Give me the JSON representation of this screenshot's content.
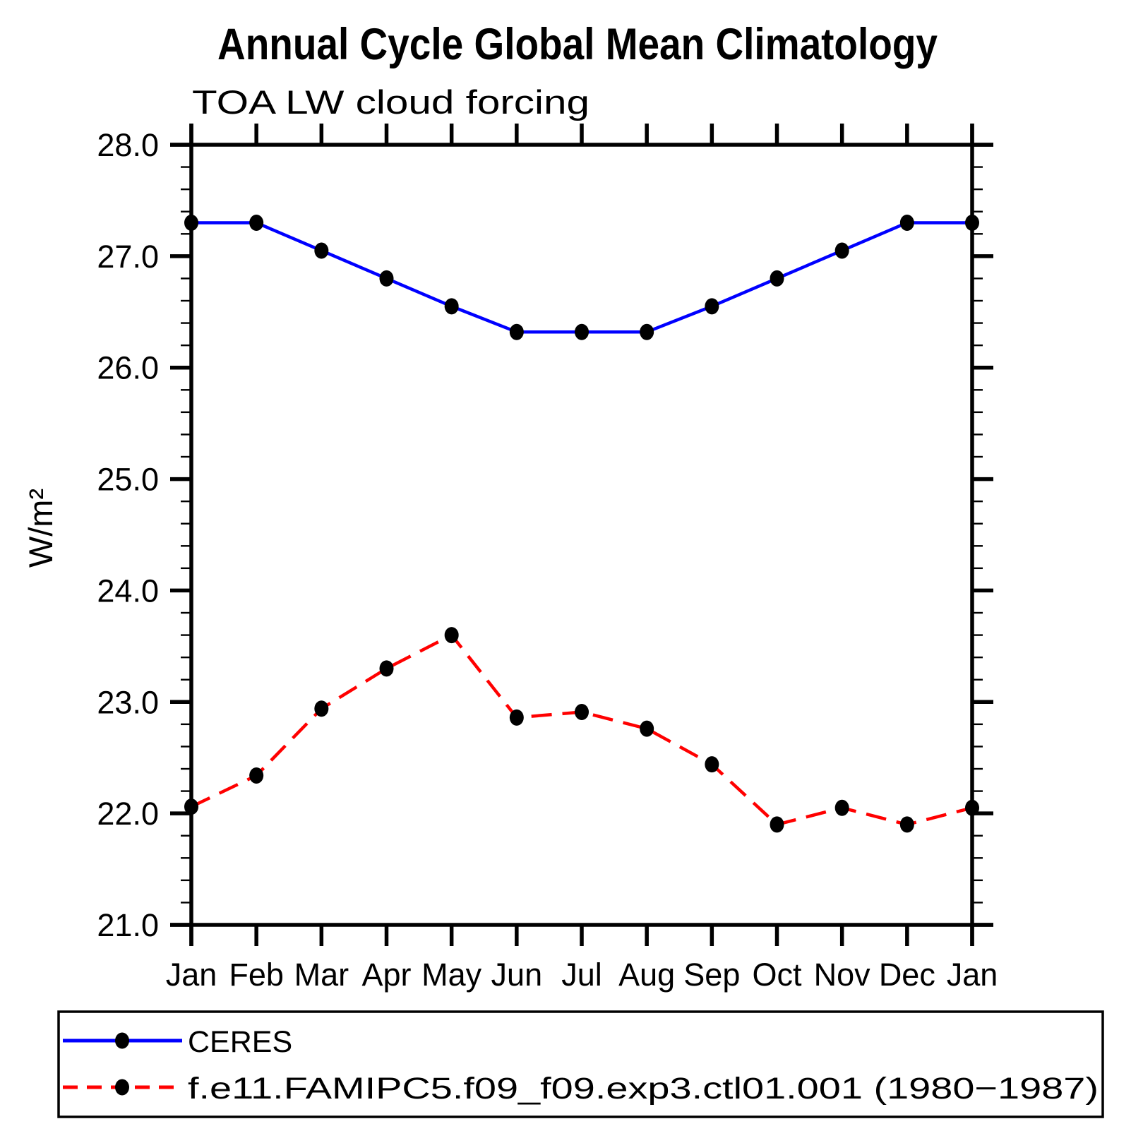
{
  "page": {
    "background": "#ffffff",
    "axis_color": "#000000",
    "marker_color": "#000000"
  },
  "chart_data": {
    "type": "line",
    "title": "Annual Cycle Global Mean Climatology",
    "subtitle": "TOA LW cloud forcing",
    "ylabel": "W/m²",
    "xlabel": "",
    "categories": [
      "Jan",
      "Feb",
      "Mar",
      "Apr",
      "May",
      "Jun",
      "Jul",
      "Aug",
      "Sep",
      "Oct",
      "Nov",
      "Dec",
      "Jan"
    ],
    "series": [
      {
        "name": "CERES",
        "color": "#0000ff",
        "line_style": "solid",
        "marker": "black-dot",
        "values": [
          27.3,
          27.3,
          27.05,
          26.8,
          26.55,
          26.32,
          26.32,
          26.32,
          26.55,
          26.8,
          27.05,
          27.3,
          27.3
        ]
      },
      {
        "name": "f.e11.FAMIPC5.f09_f09.exp3.ctl01.001 (1980−1987)",
        "color": "#ff0000",
        "line_style": "dashed",
        "marker": "black-dot",
        "values": [
          22.06,
          22.34,
          22.94,
          23.3,
          23.6,
          22.86,
          22.91,
          22.76,
          22.44,
          21.9,
          22.05,
          21.9,
          22.05
        ]
      }
    ],
    "ylim": [
      21.0,
      28.0
    ],
    "ytick_step": 1.0,
    "ytick_minor_step": 0.2,
    "ytick_labels": [
      "21.0",
      "22.0",
      "23.0",
      "24.0",
      "25.0",
      "26.0",
      "27.0",
      "28.0"
    ],
    "grid": false,
    "legend_position": "bottom"
  }
}
